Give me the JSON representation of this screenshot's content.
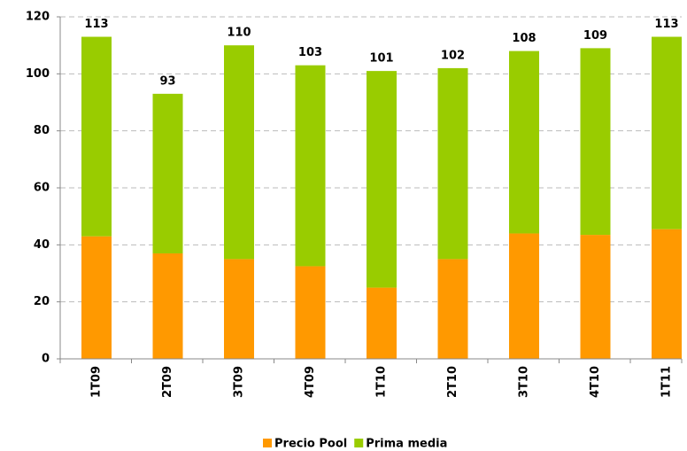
{
  "chart_data": {
    "type": "stacked_bar",
    "categories": [
      "1T09",
      "2T09",
      "3T09",
      "4T09",
      "1T10",
      "2T10",
      "3T10",
      "4T10",
      "1T11"
    ],
    "series": [
      {
        "name": "Precio Pool",
        "color": "#ff9900",
        "values": [
          43,
          37,
          35,
          32.5,
          25,
          35,
          44,
          43.5,
          45.5
        ]
      },
      {
        "name": "Prima media",
        "color": "#99cc00",
        "values": [
          70,
          56,
          75,
          70.5,
          76,
          67,
          64,
          65.5,
          67.5
        ]
      }
    ],
    "totals": [
      113,
      93,
      110,
      103,
      101,
      102,
      108,
      109,
      113
    ],
    "ylim": [
      0,
      120
    ],
    "yticks": [
      0,
      20,
      40,
      60,
      80,
      100,
      120
    ],
    "grid": true,
    "legend": "bottom"
  }
}
